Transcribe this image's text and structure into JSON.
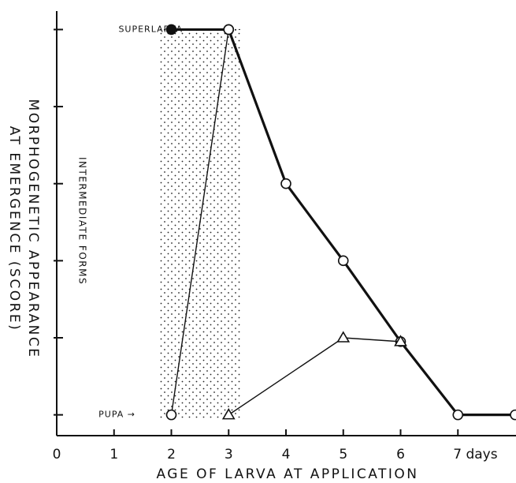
{
  "chart_data": {
    "type": "line",
    "xlabel": "AGE OF LARVA AT APPLICATION",
    "ylabel": [
      "MORPHOGENETIC APPEARANCE",
      "AT EMERGENCE (SCORE)"
    ],
    "annotation": "INTERMEDIATE FORMS",
    "shade_x": [
      1.8,
      3.2
    ],
    "xlim": [
      0,
      8
    ],
    "ylim": [
      -0.27,
      5.24
    ],
    "xticks": [
      0,
      1,
      2,
      3,
      4,
      5,
      6,
      {
        "value": 7,
        "label": "7 days"
      }
    ],
    "yticks": [
      {
        "value": 0,
        "label": "PUPA →"
      },
      {
        "value": 1,
        "label": null
      },
      {
        "value": 2,
        "label": null
      },
      {
        "value": 3,
        "label": null
      },
      {
        "value": 4,
        "label": null
      },
      {
        "value": 5,
        "label": "SUPERLARVA"
      }
    ],
    "series": [
      {
        "color": "#111",
        "width": 3.2,
        "x": [
          2,
          3,
          4,
          5,
          6,
          7,
          8
        ],
        "values": [
          5,
          5,
          3,
          2,
          0.95,
          0,
          0
        ],
        "markers": [
          "filled-circle",
          "open-circle",
          "open-circle",
          "open-circle",
          "open-circle",
          "open-circle",
          "open-circle"
        ]
      },
      {
        "color": "#111",
        "width": 1.4,
        "x": [
          2,
          3
        ],
        "values": [
          0,
          5
        ],
        "markers": [
          "open-circle",
          "open-circle"
        ]
      },
      {
        "color": "#111",
        "width": 1.4,
        "x": [
          3,
          5,
          6
        ],
        "values": [
          0,
          1,
          0.95
        ],
        "markers": [
          "open-triangle",
          "open-triangle",
          "open-triangle"
        ]
      }
    ]
  }
}
